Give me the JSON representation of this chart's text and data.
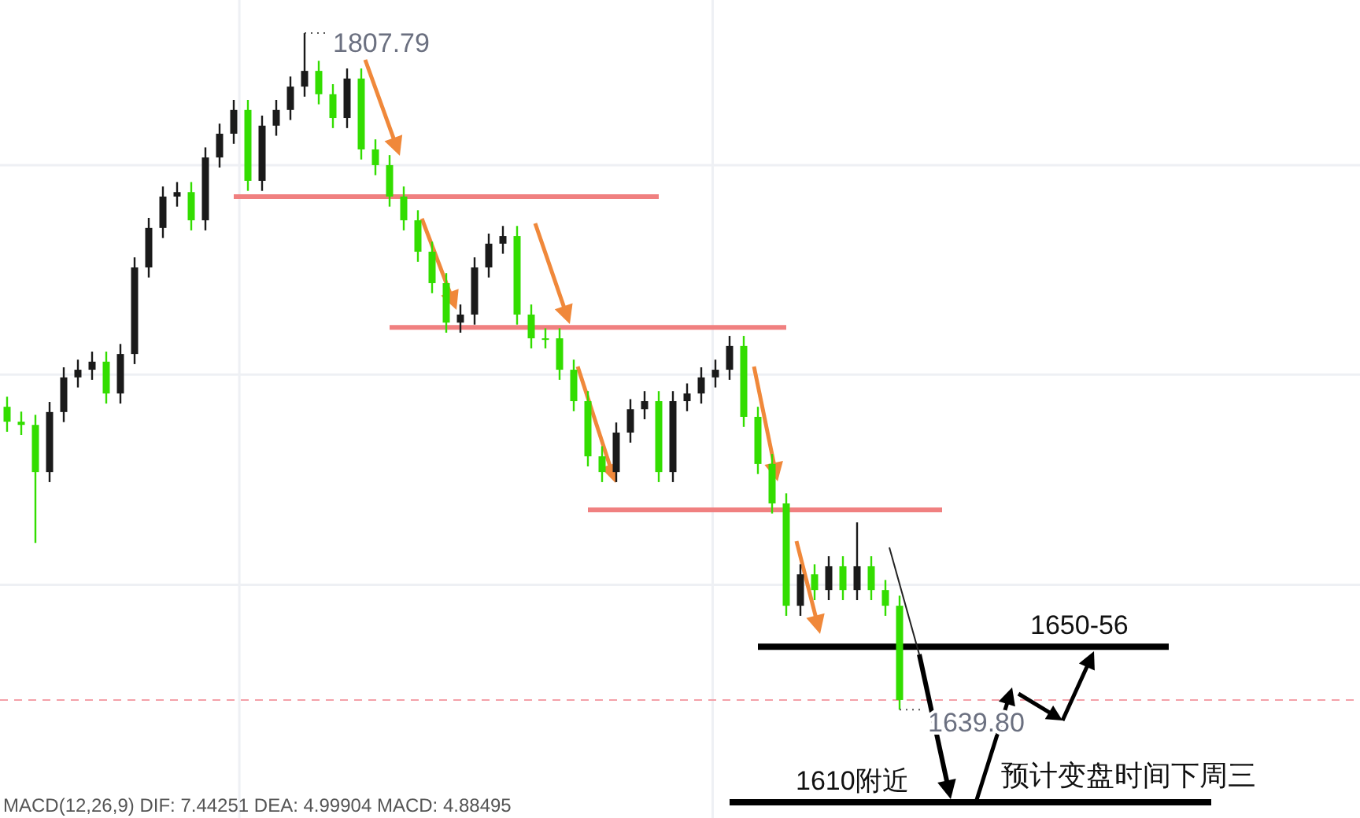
{
  "chart_data": {
    "type": "candlestick",
    "categories": [
      null,
      null,
      null,
      null,
      null,
      null,
      null,
      null,
      null,
      null,
      null,
      null,
      null,
      null,
      null,
      null,
      null,
      null,
      null,
      null,
      null,
      null,
      null,
      null,
      null,
      null,
      null,
      null,
      null,
      null,
      null,
      null,
      null,
      null,
      null,
      null,
      null,
      null,
      null,
      null,
      null,
      null,
      null,
      null,
      null,
      null,
      null,
      null,
      null,
      null,
      null,
      null,
      null,
      null,
      null,
      null,
      null,
      null,
      null,
      null,
      null,
      null,
      null,
      null,
      null,
      null,
      null,
      null,
      null,
      null,
      null,
      null,
      null,
      null,
      null,
      null,
      null,
      null,
      null,
      null,
      null,
      null,
      null,
      null,
      null,
      null,
      null,
      null,
      null,
      null,
      null,
      null,
      null,
      null,
      null,
      null
    ],
    "ohlc": [
      [
        1715.0,
        1717.5,
        1708.8,
        1711.3
      ],
      [
        1711.3,
        1713.8,
        1708.0,
        1710.5
      ],
      [
        1710.5,
        1713.0,
        1681.2,
        1698.8
      ],
      [
        1698.8,
        1716.2,
        1696.3,
        1713.7
      ],
      [
        1713.7,
        1724.8,
        1711.2,
        1722.3
      ],
      [
        1722.3,
        1726.7,
        1719.8,
        1724.2
      ],
      [
        1724.2,
        1728.7,
        1721.7,
        1726.2
      ],
      [
        1726.2,
        1728.7,
        1715.8,
        1718.3
      ],
      [
        1718.3,
        1730.6,
        1715.8,
        1728.1
      ],
      [
        1728.1,
        1752.1,
        1725.6,
        1749.6
      ],
      [
        1749.6,
        1761.9,
        1747.1,
        1759.4
      ],
      [
        1759.4,
        1769.7,
        1756.9,
        1767.2
      ],
      [
        1767.2,
        1770.8,
        1764.7,
        1768.3
      ],
      [
        1768.3,
        1770.8,
        1758.8,
        1761.3
      ],
      [
        1761.3,
        1779.4,
        1758.8,
        1776.9
      ],
      [
        1776.9,
        1785.3,
        1774.4,
        1782.8
      ],
      [
        1782.8,
        1791.2,
        1780.3,
        1788.7
      ],
      [
        1788.7,
        1791.2,
        1768.6,
        1771.1
      ],
      [
        1771.1,
        1787.3,
        1768.6,
        1784.8
      ],
      [
        1784.8,
        1791.2,
        1782.3,
        1788.7
      ],
      [
        1788.7,
        1797.0,
        1786.2,
        1794.5
      ],
      [
        1794.5,
        1807.79,
        1792.0,
        1798.4
      ],
      [
        1798.4,
        1800.9,
        1790.1,
        1792.6
      ],
      [
        1792.6,
        1795.1,
        1784.2,
        1786.7
      ],
      [
        1786.7,
        1799.0,
        1784.2,
        1796.5
      ],
      [
        1796.5,
        1799.0,
        1776.4,
        1778.9
      ],
      [
        1778.9,
        1781.4,
        1772.5,
        1775.0
      ],
      [
        1775.0,
        1777.5,
        1764.7,
        1767.2
      ],
      [
        1767.2,
        1769.7,
        1758.8,
        1761.3
      ],
      [
        1761.3,
        1763.8,
        1751.0,
        1753.5
      ],
      [
        1753.5,
        1756.0,
        1743.2,
        1745.7
      ],
      [
        1745.7,
        1748.2,
        1733.4,
        1735.9
      ],
      [
        1735.9,
        1740.4,
        1733.4,
        1737.9
      ],
      [
        1737.9,
        1752.1,
        1735.4,
        1749.6
      ],
      [
        1749.6,
        1758.0,
        1747.1,
        1755.5
      ],
      [
        1755.5,
        1759.9,
        1753.0,
        1757.4
      ],
      [
        1757.4,
        1759.9,
        1735.4,
        1737.9
      ],
      [
        1737.9,
        1740.4,
        1729.5,
        1732.0
      ],
      [
        1732.0,
        1734.5,
        1729.5,
        1732.0
      ],
      [
        1732.0,
        1734.5,
        1721.7,
        1724.2
      ],
      [
        1724.2,
        1726.7,
        1713.9,
        1716.4
      ],
      [
        1716.4,
        1718.9,
        1700.2,
        1702.7
      ],
      [
        1702.7,
        1705.2,
        1696.3,
        1698.8
      ],
      [
        1698.8,
        1711.1,
        1696.3,
        1708.6
      ],
      [
        1708.6,
        1716.9,
        1706.1,
        1714.4
      ],
      [
        1714.4,
        1718.9,
        1711.9,
        1716.4
      ],
      [
        1716.4,
        1718.9,
        1696.3,
        1698.8
      ],
      [
        1698.8,
        1718.9,
        1696.3,
        1716.4
      ],
      [
        1716.4,
        1720.8,
        1713.9,
        1718.3
      ],
      [
        1718.3,
        1724.8,
        1715.8,
        1722.3
      ],
      [
        1722.3,
        1726.7,
        1719.8,
        1724.2
      ],
      [
        1724.2,
        1732.6,
        1721.7,
        1730.1
      ],
      [
        1730.1,
        1732.6,
        1710.0,
        1712.5
      ],
      [
        1712.5,
        1715.0,
        1698.3,
        1700.8
      ],
      [
        1700.8,
        1703.3,
        1688.5,
        1691.0
      ],
      [
        1691.0,
        1693.5,
        1663.1,
        1665.6
      ],
      [
        1665.6,
        1675.9,
        1663.1,
        1673.4
      ],
      [
        1673.4,
        1675.9,
        1667.0,
        1669.5
      ],
      [
        1669.5,
        1677.9,
        1667.0,
        1675.4
      ],
      [
        1675.4,
        1677.9,
        1667.0,
        1669.5
      ],
      [
        1669.5,
        1686.3,
        1667.0,
        1675.4
      ],
      [
        1675.4,
        1677.9,
        1667.0,
        1669.5
      ],
      [
        1669.5,
        1672.0,
        1663.1,
        1665.6
      ],
      [
        1665.6,
        1668.1,
        1639.8,
        1642.2
      ],
      null,
      null,
      null,
      null,
      null,
      null,
      null,
      null,
      null,
      null,
      null,
      null,
      null,
      null,
      null,
      null,
      null,
      null,
      null,
      null,
      null,
      null,
      null,
      null,
      null,
      null,
      null,
      null,
      null,
      null,
      null,
      null
    ],
    "colors": [
      "#33dd00",
      "#33dd00",
      "#33dd00",
      "#1a1a1a",
      "#1a1a1a",
      "#1a1a1a",
      "#1a1a1a",
      "#33dd00",
      "#1a1a1a",
      "#1a1a1a",
      "#1a1a1a",
      "#1a1a1a",
      "#1a1a1a",
      "#33dd00",
      "#1a1a1a",
      "#1a1a1a",
      "#1a1a1a",
      "#33dd00",
      "#1a1a1a",
      "#1a1a1a",
      "#1a1a1a",
      "#1a1a1a",
      "#33dd00",
      "#33dd00",
      "#1a1a1a",
      "#33dd00",
      "#33dd00",
      "#33dd00",
      "#33dd00",
      "#33dd00",
      "#33dd00",
      "#33dd00",
      "#1a1a1a",
      "#1a1a1a",
      "#1a1a1a",
      "#1a1a1a",
      "#33dd00",
      "#33dd00",
      "#33dd00",
      "#33dd00",
      "#33dd00",
      "#33dd00",
      "#33dd00",
      "#1a1a1a",
      "#1a1a1a",
      "#1a1a1a",
      "#33dd00",
      "#1a1a1a",
      "#1a1a1a",
      "#1a1a1a",
      "#1a1a1a",
      "#1a1a1a",
      "#33dd00",
      "#33dd00",
      "#33dd00",
      "#33dd00",
      "#1a1a1a",
      "#33dd00",
      "#1a1a1a",
      "#33dd00",
      "#1a1a1a",
      "#33dd00",
      "#33dd00",
      "#33dd00",
      null,
      null,
      null,
      null,
      null,
      null,
      null,
      null,
      null,
      null,
      null,
      null,
      null,
      null,
      null,
      null,
      null,
      null,
      null,
      null,
      null,
      null,
      null,
      null,
      null,
      null,
      null,
      null,
      null,
      null,
      null,
      null
    ],
    "series": [
      {
        "type": "line",
        "color": "#f08080",
        "values": [
          null,
          null,
          null,
          null,
          null,
          null,
          null,
          null,
          null,
          null,
          null,
          null,
          null,
          null,
          null,
          null,
          1767.2,
          1767.2,
          1767.2,
          1767.2,
          1767.2,
          1767.2,
          1767.2,
          1767.2,
          1767.2,
          1767.2,
          1767.2,
          1767.2,
          1767.2,
          1767.2,
          1767.2,
          1767.2,
          1767.2,
          1767.2,
          1767.2,
          1767.2,
          1767.2,
          1767.2,
          1767.2,
          1767.2,
          1767.2,
          1767.2,
          1767.2,
          1767.2,
          1767.2,
          1767.2,
          1767.2,
          null,
          null,
          null,
          null,
          null,
          null,
          null,
          null,
          null,
          null,
          null,
          null,
          null,
          null,
          null,
          null,
          null,
          null,
          null,
          null,
          null,
          null,
          null,
          null,
          null,
          null,
          null,
          null,
          null,
          null,
          null,
          null,
          null,
          null,
          null,
          null,
          null,
          null,
          null,
          null,
          null,
          null,
          null,
          null,
          null,
          null,
          null,
          null,
          null
        ]
      },
      {
        "type": "line",
        "color": "#f08080",
        "values": [
          null,
          null,
          null,
          null,
          null,
          null,
          null,
          null,
          null,
          null,
          null,
          null,
          null,
          null,
          null,
          null,
          null,
          null,
          null,
          null,
          null,
          null,
          null,
          null,
          null,
          null,
          null,
          1734.7,
          1734.7,
          1734.7,
          1734.7,
          1734.7,
          1734.7,
          1734.7,
          1734.7,
          1734.7,
          1734.7,
          1734.7,
          1734.7,
          1734.7,
          1734.7,
          1734.7,
          1734.7,
          1734.7,
          1734.7,
          1734.7,
          1734.7,
          1734.7,
          1734.7,
          1734.7,
          1734.7,
          1734.7,
          1734.7,
          1734.7,
          1734.7,
          1734.7,
          null,
          null,
          null,
          null,
          null,
          null,
          null,
          null,
          null,
          null,
          null,
          null,
          null,
          null,
          null,
          null,
          null,
          null,
          null,
          null,
          null,
          null,
          null,
          null,
          null,
          null,
          null,
          null,
          null,
          null,
          null,
          null,
          null,
          null,
          null,
          null,
          null,
          null,
          null,
          null
        ]
      },
      {
        "type": "line",
        "color": "#f08080",
        "values": [
          null,
          null,
          null,
          null,
          null,
          null,
          null,
          null,
          null,
          null,
          null,
          null,
          null,
          null,
          null,
          null,
          null,
          null,
          null,
          null,
          null,
          null,
          null,
          null,
          null,
          null,
          null,
          null,
          null,
          null,
          null,
          null,
          null,
          null,
          null,
          null,
          null,
          null,
          null,
          null,
          null,
          1689.4,
          1689.4,
          1689.4,
          1689.4,
          1689.4,
          1689.4,
          1689.4,
          1689.4,
          1689.4,
          1689.4,
          1689.4,
          1689.4,
          1689.4,
          1689.4,
          1689.4,
          1689.4,
          1689.4,
          1689.4,
          1689.4,
          1689.4,
          1689.4,
          1689.4,
          1689.4,
          1689.4,
          1689.4,
          1689.4,
          null,
          null,
          null,
          null,
          null,
          null,
          null,
          null,
          null,
          null,
          null,
          null,
          null,
          null,
          null,
          null,
          null,
          null,
          null,
          null,
          null,
          null,
          null,
          null,
          null,
          null,
          null,
          null,
          null
        ]
      },
      {
        "type": "line",
        "name": "1650-56",
        "color": "#000000",
        "values": [
          null,
          null,
          null,
          null,
          null,
          null,
          null,
          null,
          null,
          null,
          null,
          null,
          null,
          null,
          null,
          null,
          null,
          null,
          null,
          null,
          null,
          null,
          null,
          null,
          null,
          null,
          null,
          null,
          null,
          null,
          null,
          null,
          null,
          null,
          null,
          null,
          null,
          null,
          null,
          null,
          null,
          null,
          null,
          null,
          null,
          null,
          null,
          null,
          null,
          null,
          null,
          null,
          null,
          1655.4,
          1655.4,
          1655.4,
          1655.4,
          1655.4,
          1655.4,
          1655.4,
          1655.4,
          1655.4,
          1655.4,
          1655.4,
          1655.4,
          1655.4,
          1655.4,
          1655.4,
          1655.4,
          1655.4,
          1655.4,
          1655.4,
          1655.4,
          1655.4,
          1655.4,
          1655.4,
          1655.4,
          1655.4,
          1655.4,
          1655.4,
          1655.4,
          1655.4,
          1655.4,
          null,
          null,
          null,
          null,
          null,
          null,
          null,
          null,
          null,
          null,
          null,
          null,
          null
        ]
      },
      {
        "type": "line",
        "name": "1610附近",
        "color": "#000000",
        "values": [
          null,
          null,
          null,
          null,
          null,
          null,
          null,
          null,
          null,
          null,
          null,
          null,
          null,
          null,
          null,
          null,
          null,
          null,
          null,
          null,
          null,
          null,
          null,
          null,
          null,
          null,
          null,
          null,
          null,
          null,
          null,
          null,
          null,
          null,
          null,
          null,
          null,
          null,
          null,
          null,
          null,
          null,
          null,
          null,
          null,
          null,
          null,
          null,
          null,
          null,
          null,
          1616.8,
          1616.8,
          1616.8,
          1616.8,
          1616.8,
          1616.8,
          1616.8,
          1616.8,
          1616.8,
          1616.8,
          1616.8,
          1616.8,
          1616.8,
          1616.8,
          1616.8,
          1616.8,
          1616.8,
          1616.8,
          1616.8,
          1616.8,
          1616.8,
          1616.8,
          1616.8,
          1616.8,
          1616.8,
          1616.8,
          1616.8,
          1616.8,
          1616.8,
          1616.8,
          1616.8,
          1616.8,
          1616.8,
          1616.8,
          1616.8,
          null,
          null,
          null,
          null,
          null,
          null,
          null,
          null,
          null,
          null
        ]
      }
    ],
    "ref_lines": [
      {
        "axis": "y",
        "value": 1642.2,
        "color": "#f4a0a8",
        "line_style": "dashed"
      }
    ],
    "ylim": [
      1612.9,
      1816.0
    ],
    "tick_labels": false,
    "grid": true,
    "annotations": [
      "1807.79",
      "1639.80",
      "预计变盘时间下周三",
      "MACD(12,26,9)  DIF: 7.44251  DEA: 4.99904  MACD: 4.88495"
    ]
  }
}
